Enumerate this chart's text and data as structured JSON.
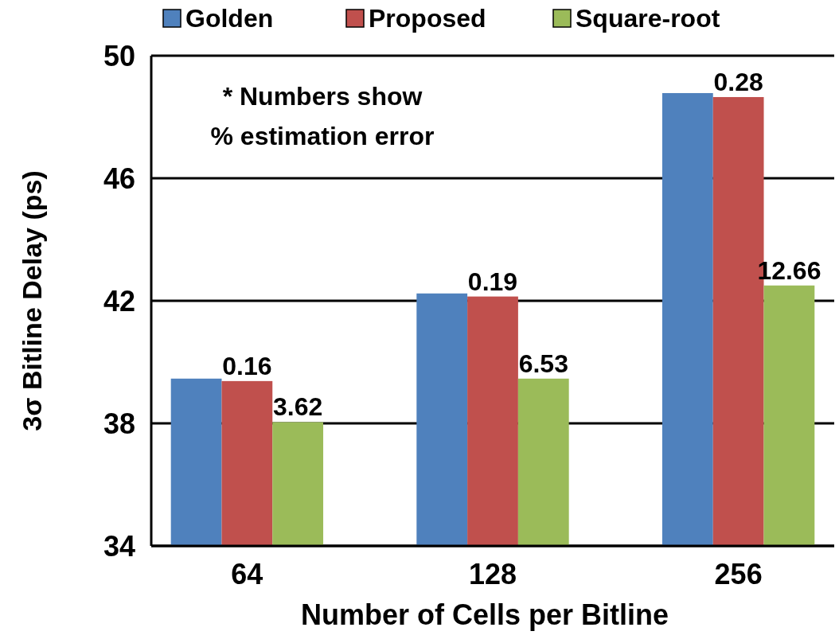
{
  "chart_data": {
    "type": "bar",
    "xlabel": "Number of Cells per Bitline",
    "ylabel": "3σ Bitline Delay (ps)",
    "categories": [
      "64",
      "128",
      "256"
    ],
    "series": [
      {
        "name": "Golden",
        "color": "#4f81bd",
        "values": [
          39.46,
          42.24,
          48.78
        ]
      },
      {
        "name": "Proposed",
        "color": "#c0504d",
        "values": [
          39.38,
          42.14,
          48.65
        ]
      },
      {
        "name": "Square-root",
        "color": "#9bbb59",
        "values": [
          38.04,
          39.46,
          42.5
        ]
      }
    ],
    "ylim": [
      34,
      50
    ],
    "yticks": [
      34,
      38,
      42,
      46,
      50
    ],
    "grid": "y",
    "legend": "top",
    "annotations": [
      "* Numbers show % estimation error",
      {
        "text": "0.16",
        "x": "64",
        "y": 39.38
      },
      {
        "text": "0.19",
        "x": "128",
        "y": 42.14
      },
      {
        "text": "0.28",
        "x": "256",
        "y": 48.65
      },
      "3.62",
      "6.53",
      "12.66"
    ]
  }
}
